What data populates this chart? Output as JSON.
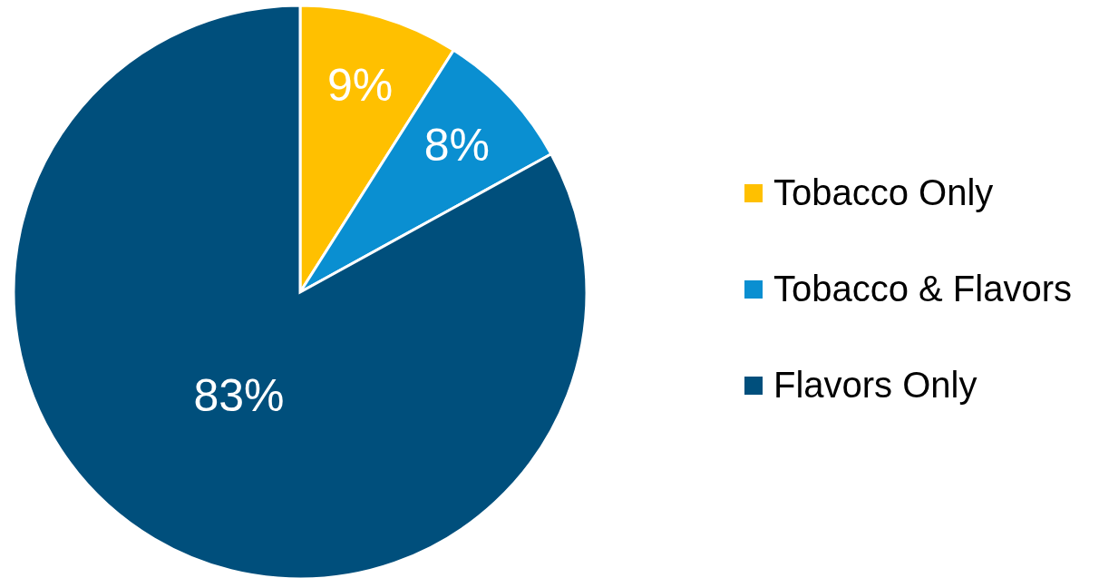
{
  "chart_data": {
    "type": "pie",
    "categories": [
      "Tobacco Only",
      "Tobacco & Flavors",
      "Flavors Only"
    ],
    "values": [
      9,
      8,
      83
    ],
    "colors": [
      "#ffc000",
      "#0a8fd1",
      "#004f7c"
    ],
    "value_labels": [
      "9%",
      "8%",
      "83%"
    ],
    "legend": "right"
  }
}
